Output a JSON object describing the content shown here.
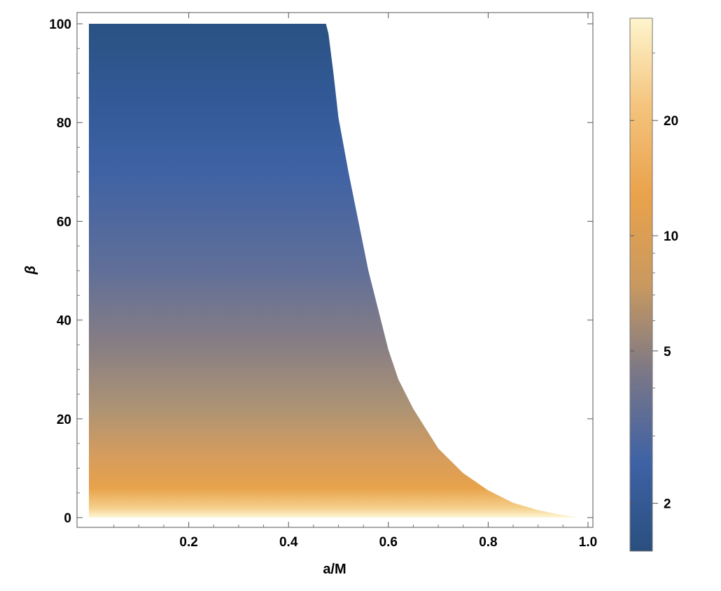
{
  "chart_data": {
    "type": "heatmap",
    "title": "",
    "xlabel": "a/M",
    "ylabel": "β",
    "xlim": [
      0.0,
      1.0
    ],
    "ylim": [
      0,
      100
    ],
    "x_ticks": [
      "0.2",
      "0.4",
      "0.6",
      "0.8",
      "1.0"
    ],
    "x_tick_values": [
      0.2,
      0.4,
      0.6,
      0.8,
      1.0
    ],
    "y_ticks": [
      "0",
      "20",
      "40",
      "60",
      "80",
      "100"
    ],
    "y_tick_values": [
      0,
      20,
      40,
      60,
      80,
      100
    ],
    "grid": false,
    "region": {
      "x_min": 0.0,
      "boundary": [
        {
          "a": 0.475,
          "beta": 100
        },
        {
          "a": 0.48,
          "beta": 98
        },
        {
          "a": 0.49,
          "beta": 90
        },
        {
          "a": 0.5,
          "beta": 81
        },
        {
          "a": 0.52,
          "beta": 70
        },
        {
          "a": 0.54,
          "beta": 60
        },
        {
          "a": 0.56,
          "beta": 50
        },
        {
          "a": 0.58,
          "beta": 42
        },
        {
          "a": 0.6,
          "beta": 34
        },
        {
          "a": 0.62,
          "beta": 28
        },
        {
          "a": 0.65,
          "beta": 22
        },
        {
          "a": 0.7,
          "beta": 14
        },
        {
          "a": 0.75,
          "beta": 9
        },
        {
          "a": 0.8,
          "beta": 5.5
        },
        {
          "a": 0.85,
          "beta": 3
        },
        {
          "a": 0.9,
          "beta": 1.5
        },
        {
          "a": 0.95,
          "beta": 0.5
        },
        {
          "a": 0.985,
          "beta": 0
        }
      ]
    },
    "color_gradient_by_beta": [
      {
        "beta": 0,
        "color": "#fef6d6"
      },
      {
        "beta": 2,
        "color": "#f5cf8a"
      },
      {
        "beta": 6,
        "color": "#e7a24b"
      },
      {
        "beta": 12,
        "color": "#d79d5c"
      },
      {
        "beta": 22,
        "color": "#ad9374"
      },
      {
        "beta": 35,
        "color": "#877e84"
      },
      {
        "beta": 50,
        "color": "#606f98"
      },
      {
        "beta": 70,
        "color": "#3f62a4"
      },
      {
        "beta": 85,
        "color": "#325996"
      },
      {
        "beta": 100,
        "color": "#2a5282"
      }
    ],
    "colorbar": {
      "scale": "log",
      "range": [
        1.5,
        37
      ],
      "ticks": [
        "2",
        "5",
        "10",
        "20"
      ],
      "tick_values": [
        2,
        5,
        10,
        20
      ],
      "colors_bottom_to_top": [
        "#2a4f7e",
        "#3e62a5",
        "#7a7787",
        "#c9995f",
        "#e9a24b",
        "#f4c37c",
        "#fef5cd"
      ]
    }
  }
}
